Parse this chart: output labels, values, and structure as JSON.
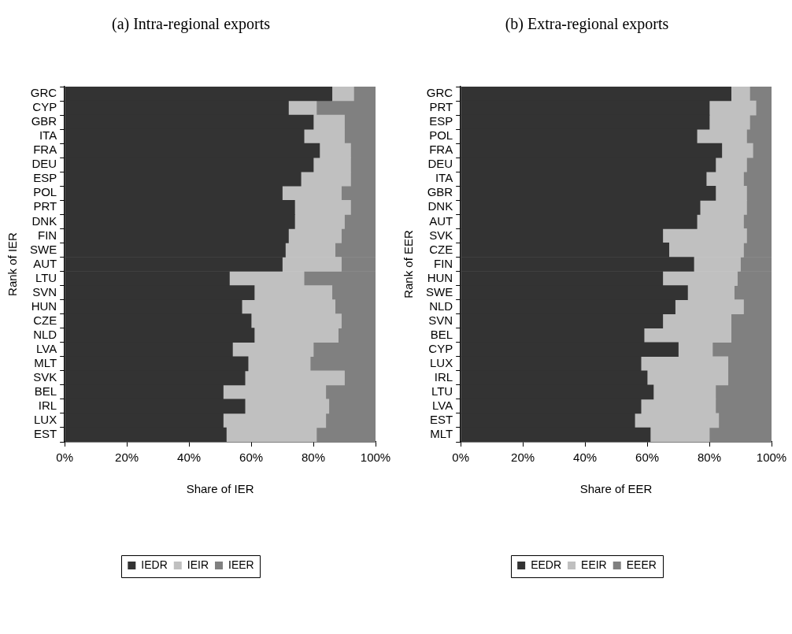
{
  "chart_data": [
    {
      "type": "bar",
      "orientation": "horizontal",
      "stacked": true,
      "title": "(a) Intra-regional exports",
      "xlabel": "Share of IER",
      "ylabel": "Rank of IER",
      "categories": [
        "GRC",
        "CYP",
        "GBR",
        "ITA",
        "FRA",
        "DEU",
        "ESP",
        "POL",
        "PRT",
        "DNK",
        "FIN",
        "SWE",
        "AUT",
        "LTU",
        "SVN",
        "HUN",
        "CZE",
        "NLD",
        "LVA",
        "MLT",
        "SVK",
        "BEL",
        "IRL",
        "LUX",
        "EST"
      ],
      "series": [
        {
          "name": "IEDR",
          "color": "#333333",
          "values": [
            86,
            72,
            80,
            77,
            82,
            80,
            76,
            70,
            74,
            74,
            72,
            71,
            70,
            53,
            61,
            57,
            60,
            61,
            54,
            59,
            58,
            51,
            58,
            51,
            52
          ]
        },
        {
          "name": "IEIR",
          "color": "#c0c0c0",
          "values": [
            7,
            9,
            10,
            13,
            10,
            12,
            16,
            19,
            18,
            16,
            17,
            16,
            19,
            24,
            25,
            30,
            29,
            27,
            26,
            20,
            32,
            33,
            27,
            33,
            29
          ]
        },
        {
          "name": "IEER",
          "color": "#808080",
          "values": [
            7,
            19,
            10,
            10,
            8,
            8,
            8,
            11,
            8,
            10,
            11,
            13,
            11,
            23,
            14,
            13,
            11,
            12,
            20,
            21,
            10,
            16,
            15,
            16,
            19
          ]
        }
      ],
      "xlim": [
        0,
        100
      ],
      "xticks": [
        {
          "value": 0,
          "label": "0%"
        },
        {
          "value": 20,
          "label": "20%"
        },
        {
          "value": 40,
          "label": "40%"
        },
        {
          "value": 60,
          "label": "60%"
        },
        {
          "value": 80,
          "label": "80%"
        },
        {
          "value": 100,
          "label": "100%"
        }
      ],
      "legend": "bottom",
      "grid": false
    },
    {
      "type": "bar",
      "orientation": "horizontal",
      "stacked": true,
      "title": "(b) Extra-regional exports",
      "xlabel": "Share of EER",
      "ylabel": "Rank of EER",
      "categories": [
        "GRC",
        "PRT",
        "ESP",
        "POL",
        "FRA",
        "DEU",
        "ITA",
        "GBR",
        "DNK",
        "AUT",
        "SVK",
        "CZE",
        "FIN",
        "HUN",
        "SWE",
        "NLD",
        "SVN",
        "BEL",
        "CYP",
        "LUX",
        "IRL",
        "LTU",
        "LVA",
        "EST",
        "MLT"
      ],
      "series": [
        {
          "name": "EEDR",
          "color": "#333333",
          "values": [
            87,
            80,
            80,
            76,
            84,
            82,
            79,
            82,
            77,
            76,
            65,
            67,
            75,
            65,
            73,
            69,
            65,
            59,
            70,
            58,
            60,
            62,
            58,
            56,
            61
          ]
        },
        {
          "name": "EEIR",
          "color": "#c0c0c0",
          "values": [
            6,
            15,
            13,
            16,
            10,
            10,
            12,
            10,
            15,
            15,
            27,
            24,
            15,
            24,
            15,
            22,
            22,
            28,
            11,
            28,
            26,
            20,
            24,
            27,
            19
          ]
        },
        {
          "name": "EEER",
          "color": "#808080",
          "values": [
            7,
            5,
            7,
            8,
            6,
            8,
            9,
            8,
            8,
            9,
            8,
            9,
            10,
            11,
            12,
            9,
            13,
            13,
            19,
            14,
            14,
            18,
            18,
            17,
            20
          ]
        }
      ],
      "xlim": [
        0,
        100
      ],
      "xticks": [
        {
          "value": 0,
          "label": "0%"
        },
        {
          "value": 20,
          "label": "20%"
        },
        {
          "value": 40,
          "label": "40%"
        },
        {
          "value": 60,
          "label": "60%"
        },
        {
          "value": 80,
          "label": "80%"
        },
        {
          "value": 100,
          "label": "100%"
        }
      ],
      "legend": "bottom",
      "grid": false
    }
  ]
}
